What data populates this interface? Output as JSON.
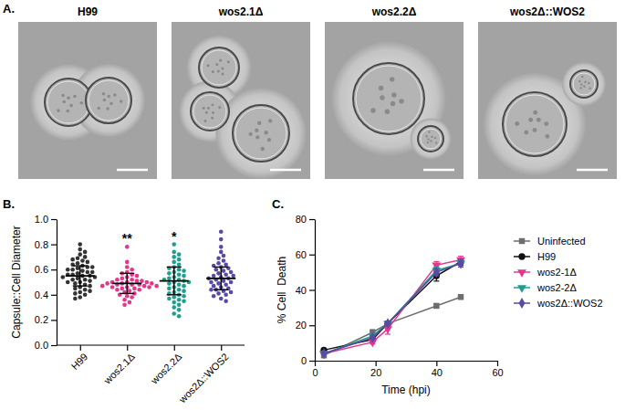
{
  "micrographs": {
    "panel_label": "A.",
    "titles": [
      "H99",
      "wos2.1Δ",
      "wos2.2Δ",
      "wos2Δ::WOS2"
    ]
  },
  "chart_data": [
    {
      "type": "strip",
      "panel_label": "B.",
      "ylabel": "Capsule::Cell Diameter",
      "categories": [
        "H99",
        "wos2.1Δ",
        "wos2.2Δ",
        "wos2Δ::WOS2"
      ],
      "colors": [
        "#333333",
        "#e0388b",
        "#1f9e8e",
        "#5a4aa3"
      ],
      "values": [
        [
          0.8,
          0.76,
          0.74,
          0.72,
          0.7,
          0.69,
          0.68,
          0.67,
          0.66,
          0.65,
          0.64,
          0.63,
          0.62,
          0.62,
          0.61,
          0.6,
          0.6,
          0.59,
          0.58,
          0.58,
          0.57,
          0.56,
          0.56,
          0.55,
          0.55,
          0.54,
          0.54,
          0.53,
          0.52,
          0.52,
          0.51,
          0.5,
          0.5,
          0.49,
          0.48,
          0.47,
          0.46,
          0.45,
          0.44,
          0.43,
          0.42,
          0.41,
          0.4,
          0.38,
          0.37
        ],
        [
          0.78,
          0.66,
          0.62,
          0.6,
          0.58,
          0.57,
          0.56,
          0.55,
          0.54,
          0.53,
          0.52,
          0.52,
          0.51,
          0.51,
          0.5,
          0.5,
          0.5,
          0.49,
          0.49,
          0.49,
          0.48,
          0.48,
          0.48,
          0.47,
          0.47,
          0.47,
          0.46,
          0.46,
          0.46,
          0.45,
          0.45,
          0.44,
          0.44,
          0.43,
          0.42,
          0.41,
          0.4,
          0.39,
          0.38,
          0.36,
          0.34,
          0.32
        ],
        [
          0.8,
          0.74,
          0.72,
          0.7,
          0.68,
          0.66,
          0.64,
          0.62,
          0.61,
          0.6,
          0.59,
          0.58,
          0.57,
          0.56,
          0.55,
          0.54,
          0.53,
          0.52,
          0.52,
          0.51,
          0.5,
          0.5,
          0.49,
          0.48,
          0.47,
          0.46,
          0.45,
          0.44,
          0.43,
          0.42,
          0.41,
          0.4,
          0.39,
          0.38,
          0.37,
          0.36,
          0.35,
          0.34,
          0.32,
          0.3,
          0.28,
          0.25,
          0.23
        ],
        [
          0.9,
          0.84,
          0.78,
          0.74,
          0.71,
          0.69,
          0.67,
          0.65,
          0.64,
          0.63,
          0.62,
          0.61,
          0.6,
          0.59,
          0.58,
          0.57,
          0.56,
          0.55,
          0.55,
          0.54,
          0.53,
          0.53,
          0.52,
          0.51,
          0.5,
          0.5,
          0.49,
          0.48,
          0.47,
          0.46,
          0.45,
          0.44,
          0.44,
          0.43,
          0.42,
          0.41,
          0.4,
          0.39,
          0.37,
          0.35
        ]
      ],
      "mean": [
        0.55,
        0.49,
        0.51,
        0.53
      ],
      "sd": [
        0.08,
        0.08,
        0.11,
        0.09
      ],
      "annotations": [
        {
          "category": "wos2.1Δ",
          "text": "**"
        },
        {
          "category": "wos2.2Δ",
          "text": "*"
        }
      ],
      "ylim": [
        0,
        1
      ],
      "yticks": [
        {
          "value": 0,
          "label": "0.0"
        },
        0.2,
        0.4,
        0.6,
        0.8,
        {
          "value": 1,
          "label": "1.0"
        }
      ]
    },
    {
      "type": "line",
      "panel_label": "C.",
      "xlabel": "Time (hpi)",
      "ylabel": "% Cell  Death",
      "x": [
        3,
        19,
        24,
        40,
        48
      ],
      "xlim": [
        0,
        60
      ],
      "xticks": [
        0,
        20,
        40,
        60
      ],
      "ylim": [
        0,
        80
      ],
      "yticks": [
        0,
        20,
        40,
        60,
        80
      ],
      "legend": "right",
      "series": [
        {
          "name": "Uninfected",
          "color": "#6e6e6e",
          "marker": "square",
          "values": [
            3,
            16,
            21,
            31,
            36
          ],
          "errors": [
            0.5,
            1.5,
            1,
            0.8,
            1
          ]
        },
        {
          "name": "H99",
          "color": "#111111",
          "marker": "circle",
          "values": [
            6,
            12,
            21,
            48,
            56
          ],
          "errors": [
            0.5,
            1,
            1,
            3,
            2
          ]
        },
        {
          "name": "wos2-1Δ",
          "color": "#e0388b",
          "marker": "triangle-down",
          "values": [
            4,
            10.5,
            18,
            54,
            57
          ],
          "errors": [
            0.5,
            1,
            3,
            2,
            2
          ]
        },
        {
          "name": "wos2-2Δ",
          "color": "#1f9e8e",
          "marker": "triangle-down",
          "values": [
            4,
            14,
            21,
            51,
            55
          ],
          "errors": [
            0.5,
            1,
            1,
            2,
            2
          ]
        },
        {
          "name": "wos2Δ::WOS2",
          "color": "#5a4aa3",
          "marker": "diamond",
          "values": [
            4,
            13,
            21,
            50,
            55
          ],
          "errors": [
            0.5,
            1,
            1,
            2,
            2
          ]
        }
      ]
    }
  ]
}
